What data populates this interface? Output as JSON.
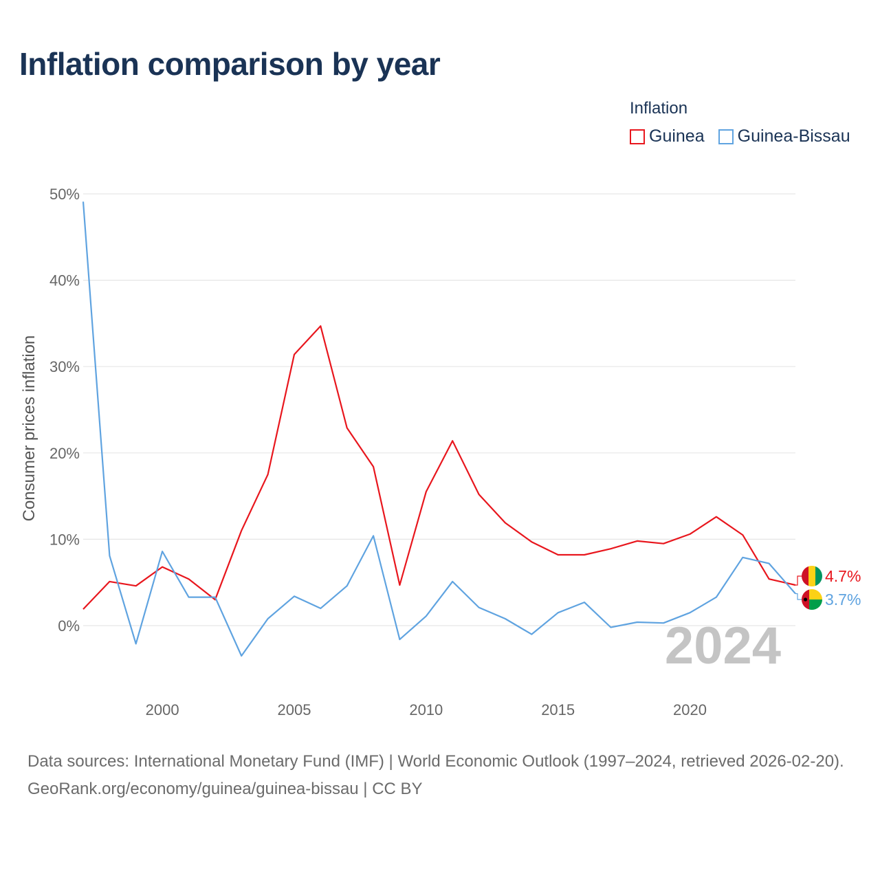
{
  "title": "Inflation comparison by year",
  "legend": {
    "title": "Inflation",
    "items": [
      {
        "label": "Guinea",
        "color": "#e8161d"
      },
      {
        "label": "Guinea-Bissau",
        "color": "#5fa3e0"
      }
    ]
  },
  "chart_data": {
    "type": "line",
    "title": "Inflation comparison by year",
    "xlabel": "",
    "ylabel": "Consumer prices inflation",
    "x": [
      1997,
      1998,
      1999,
      2000,
      2001,
      2002,
      2003,
      2004,
      2005,
      2006,
      2007,
      2008,
      2009,
      2010,
      2011,
      2012,
      2013,
      2014,
      2015,
      2016,
      2017,
      2018,
      2019,
      2020,
      2021,
      2022,
      2023,
      2024
    ],
    "xlim": [
      1997,
      2024
    ],
    "ylim": [
      -8,
      50
    ],
    "x_ticks": [
      "2000",
      "2005",
      "2010",
      "2015",
      "2020"
    ],
    "y_ticks": [
      "0%",
      "10%",
      "20%",
      "30%",
      "40%",
      "50%"
    ],
    "series": [
      {
        "name": "Guinea",
        "color": "#e8161d",
        "values": [
          1.9,
          5.1,
          4.6,
          6.8,
          5.4,
          3.0,
          11.0,
          17.5,
          31.4,
          34.7,
          22.9,
          18.4,
          4.7,
          15.5,
          21.4,
          15.2,
          11.9,
          9.7,
          8.2,
          8.2,
          8.9,
          9.8,
          9.5,
          10.6,
          12.6,
          10.5,
          5.4,
          4.7
        ]
      },
      {
        "name": "Guinea-Bissau",
        "color": "#5fa3e0",
        "values": [
          49.1,
          8.1,
          -2.1,
          8.6,
          3.3,
          3.3,
          -3.5,
          0.8,
          3.4,
          2.0,
          4.6,
          10.4,
          -1.6,
          1.1,
          5.1,
          2.1,
          0.8,
          -1.0,
          1.5,
          2.7,
          -0.2,
          0.4,
          0.3,
          1.5,
          3.3,
          7.9,
          7.2,
          3.7
        ]
      }
    ],
    "end_labels": [
      "4.7%",
      "3.7%"
    ],
    "year_watermark": "2024",
    "grid": true
  },
  "footer": {
    "sources": "Data sources: International Monetary Fund (IMF) | World Economic Outlook (1997–2024, retrieved 2026-02-20).",
    "link": "GeoRank.org/economy/guinea/guinea-bissau | CC BY"
  }
}
